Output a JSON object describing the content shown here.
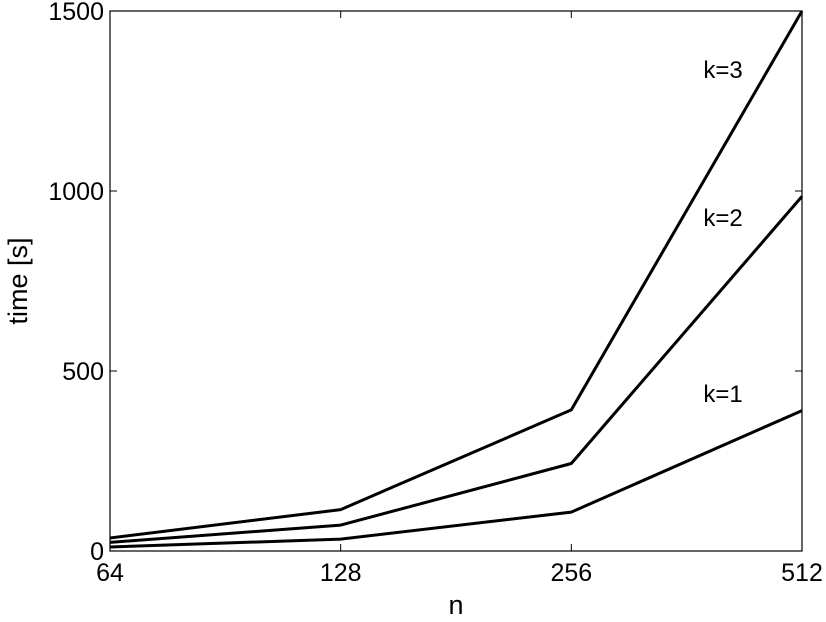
{
  "chart_data": {
    "type": "line",
    "x": [
      64,
      128,
      256,
      512
    ],
    "xscale": "log2",
    "xlim": [
      64,
      512
    ],
    "ylim": [
      0,
      1500
    ],
    "xticks": [
      64,
      128,
      256,
      512
    ],
    "yticks": [
      0,
      500,
      1000,
      1500
    ],
    "xtick_labels": [
      "64",
      "128",
      "256",
      "512"
    ],
    "ytick_labels": [
      "0",
      "500",
      "1000",
      "1500"
    ],
    "xlabel": "n",
    "ylabel": "time [s]",
    "grid": false,
    "series": [
      {
        "name": "k=1",
        "values": [
          11,
          33,
          108,
          390
        ]
      },
      {
        "name": "k=2",
        "values": [
          24,
          72,
          243,
          985
        ]
      },
      {
        "name": "k=3",
        "values": [
          36,
          115,
          392,
          1500
        ]
      }
    ],
    "colors": {
      "line": "#000000",
      "background": "#ffffff"
    }
  }
}
